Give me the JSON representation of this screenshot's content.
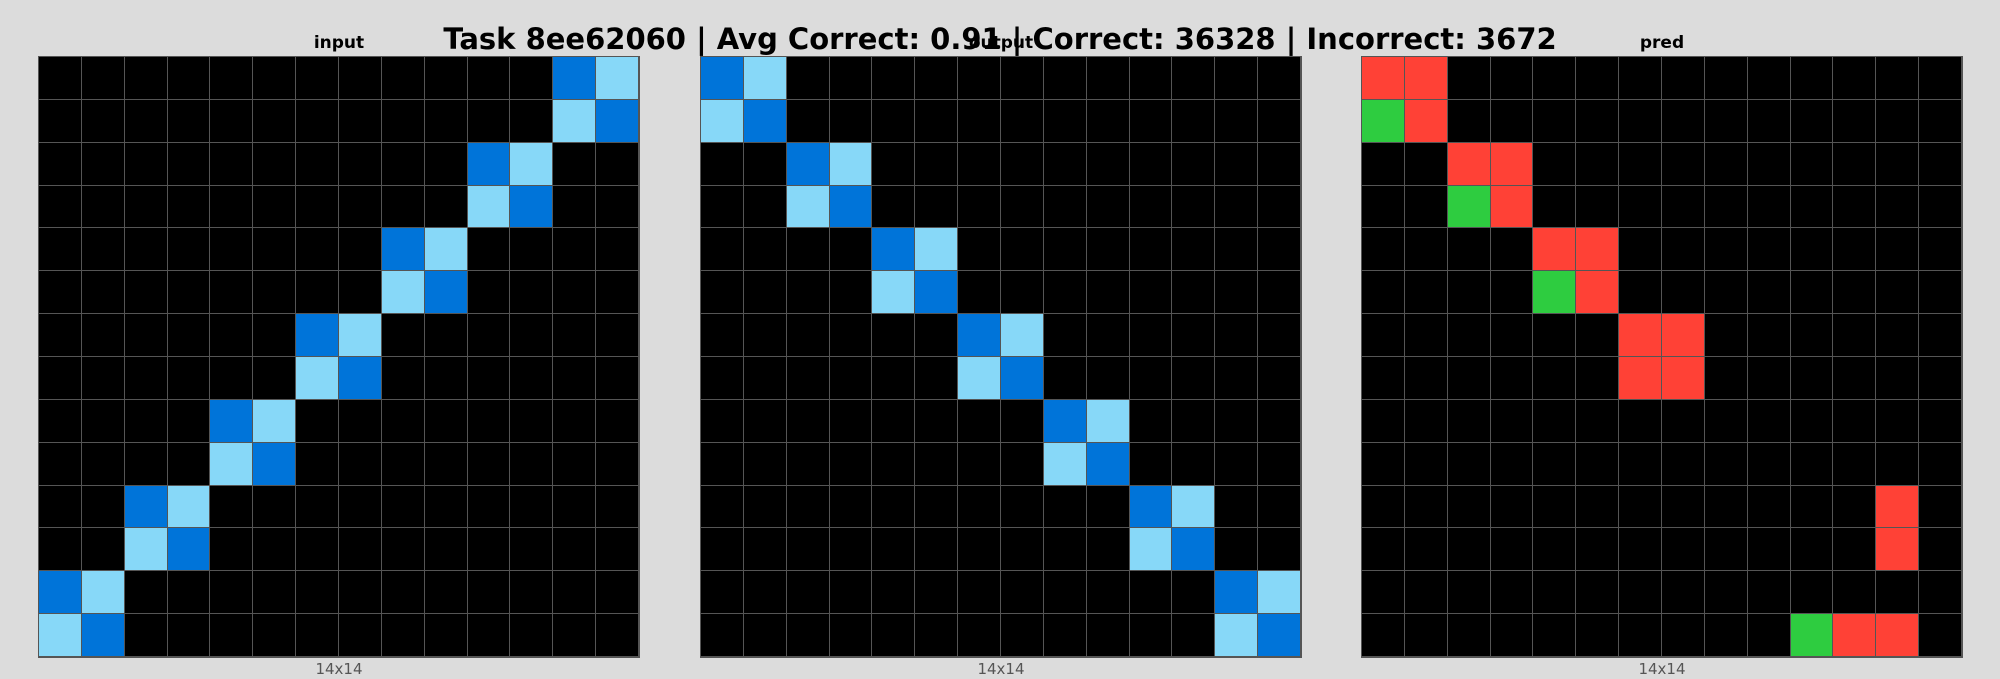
{
  "title": "Task 8ee62060 | Avg Correct: 0.91 | Correct: 36328 | Incorrect: 3672",
  "palette": {
    "0": "#000000",
    "2": "#ff4136",
    "3": "#2ecc40",
    "8": "#87d8f8",
    "9": "#0074d9"
  },
  "panels": [
    {
      "label": "input",
      "dims": "14x14",
      "grid": [
        [
          0,
          0,
          0,
          0,
          0,
          0,
          0,
          0,
          0,
          0,
          0,
          0,
          9,
          8
        ],
        [
          0,
          0,
          0,
          0,
          0,
          0,
          0,
          0,
          0,
          0,
          0,
          0,
          8,
          9
        ],
        [
          0,
          0,
          0,
          0,
          0,
          0,
          0,
          0,
          0,
          0,
          9,
          8,
          0,
          0
        ],
        [
          0,
          0,
          0,
          0,
          0,
          0,
          0,
          0,
          0,
          0,
          8,
          9,
          0,
          0
        ],
        [
          0,
          0,
          0,
          0,
          0,
          0,
          0,
          0,
          9,
          8,
          0,
          0,
          0,
          0
        ],
        [
          0,
          0,
          0,
          0,
          0,
          0,
          0,
          0,
          8,
          9,
          0,
          0,
          0,
          0
        ],
        [
          0,
          0,
          0,
          0,
          0,
          0,
          9,
          8,
          0,
          0,
          0,
          0,
          0,
          0
        ],
        [
          0,
          0,
          0,
          0,
          0,
          0,
          8,
          9,
          0,
          0,
          0,
          0,
          0,
          0
        ],
        [
          0,
          0,
          0,
          0,
          9,
          8,
          0,
          0,
          0,
          0,
          0,
          0,
          0,
          0
        ],
        [
          0,
          0,
          0,
          0,
          8,
          9,
          0,
          0,
          0,
          0,
          0,
          0,
          0,
          0
        ],
        [
          0,
          0,
          9,
          8,
          0,
          0,
          0,
          0,
          0,
          0,
          0,
          0,
          0,
          0
        ],
        [
          0,
          0,
          8,
          9,
          0,
          0,
          0,
          0,
          0,
          0,
          0,
          0,
          0,
          0
        ],
        [
          9,
          8,
          0,
          0,
          0,
          0,
          0,
          0,
          0,
          0,
          0,
          0,
          0,
          0
        ],
        [
          8,
          9,
          0,
          0,
          0,
          0,
          0,
          0,
          0,
          0,
          0,
          0,
          0,
          0
        ]
      ]
    },
    {
      "label": "output",
      "dims": "14x14",
      "grid": [
        [
          9,
          8,
          0,
          0,
          0,
          0,
          0,
          0,
          0,
          0,
          0,
          0,
          0,
          0
        ],
        [
          8,
          9,
          0,
          0,
          0,
          0,
          0,
          0,
          0,
          0,
          0,
          0,
          0,
          0
        ],
        [
          0,
          0,
          9,
          8,
          0,
          0,
          0,
          0,
          0,
          0,
          0,
          0,
          0,
          0
        ],
        [
          0,
          0,
          8,
          9,
          0,
          0,
          0,
          0,
          0,
          0,
          0,
          0,
          0,
          0
        ],
        [
          0,
          0,
          0,
          0,
          9,
          8,
          0,
          0,
          0,
          0,
          0,
          0,
          0,
          0
        ],
        [
          0,
          0,
          0,
          0,
          8,
          9,
          0,
          0,
          0,
          0,
          0,
          0,
          0,
          0
        ],
        [
          0,
          0,
          0,
          0,
          0,
          0,
          9,
          8,
          0,
          0,
          0,
          0,
          0,
          0
        ],
        [
          0,
          0,
          0,
          0,
          0,
          0,
          8,
          9,
          0,
          0,
          0,
          0,
          0,
          0
        ],
        [
          0,
          0,
          0,
          0,
          0,
          0,
          0,
          0,
          9,
          8,
          0,
          0,
          0,
          0
        ],
        [
          0,
          0,
          0,
          0,
          0,
          0,
          0,
          0,
          8,
          9,
          0,
          0,
          0,
          0
        ],
        [
          0,
          0,
          0,
          0,
          0,
          0,
          0,
          0,
          0,
          0,
          9,
          8,
          0,
          0
        ],
        [
          0,
          0,
          0,
          0,
          0,
          0,
          0,
          0,
          0,
          0,
          8,
          9,
          0,
          0
        ],
        [
          0,
          0,
          0,
          0,
          0,
          0,
          0,
          0,
          0,
          0,
          0,
          0,
          9,
          8
        ],
        [
          0,
          0,
          0,
          0,
          0,
          0,
          0,
          0,
          0,
          0,
          0,
          0,
          8,
          9
        ]
      ]
    },
    {
      "label": "pred",
      "dims": "14x14",
      "grid": [
        [
          2,
          2,
          0,
          0,
          0,
          0,
          0,
          0,
          0,
          0,
          0,
          0,
          0,
          0
        ],
        [
          3,
          2,
          0,
          0,
          0,
          0,
          0,
          0,
          0,
          0,
          0,
          0,
          0,
          0
        ],
        [
          0,
          0,
          2,
          2,
          0,
          0,
          0,
          0,
          0,
          0,
          0,
          0,
          0,
          0
        ],
        [
          0,
          0,
          3,
          2,
          0,
          0,
          0,
          0,
          0,
          0,
          0,
          0,
          0,
          0
        ],
        [
          0,
          0,
          0,
          0,
          2,
          2,
          0,
          0,
          0,
          0,
          0,
          0,
          0,
          0
        ],
        [
          0,
          0,
          0,
          0,
          3,
          2,
          0,
          0,
          0,
          0,
          0,
          0,
          0,
          0
        ],
        [
          0,
          0,
          0,
          0,
          0,
          0,
          2,
          2,
          0,
          0,
          0,
          0,
          0,
          0
        ],
        [
          0,
          0,
          0,
          0,
          0,
          0,
          2,
          2,
          0,
          0,
          0,
          0,
          0,
          0
        ],
        [
          0,
          0,
          0,
          0,
          0,
          0,
          0,
          0,
          0,
          0,
          0,
          0,
          0,
          0
        ],
        [
          0,
          0,
          0,
          0,
          0,
          0,
          0,
          0,
          0,
          0,
          0,
          0,
          0,
          0
        ],
        [
          0,
          0,
          0,
          0,
          0,
          0,
          0,
          0,
          0,
          0,
          0,
          0,
          2,
          0
        ],
        [
          0,
          0,
          0,
          0,
          0,
          0,
          0,
          0,
          0,
          0,
          0,
          0,
          2,
          0
        ],
        [
          0,
          0,
          0,
          0,
          0,
          0,
          0,
          0,
          0,
          0,
          0,
          0,
          0,
          0
        ],
        [
          0,
          0,
          0,
          0,
          0,
          0,
          0,
          0,
          0,
          0,
          3,
          2,
          2,
          0
        ]
      ]
    }
  ]
}
